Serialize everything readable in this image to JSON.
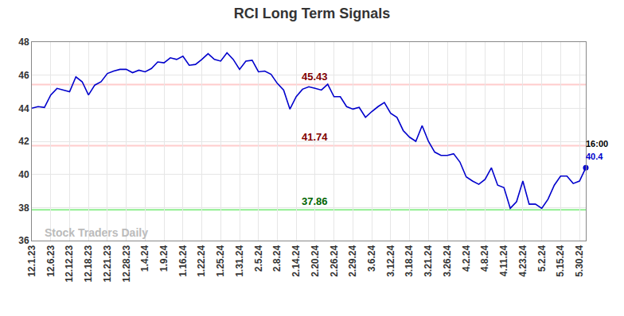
{
  "chart_data": {
    "type": "line",
    "title": "RCI Long Term Signals",
    "watermark": "Stock Traders Daily",
    "color": "#0000cc",
    "marker": "circle",
    "grid": true,
    "categories": [
      "12.1.23",
      null,
      null,
      "12.6.23",
      null,
      null,
      "12.12.23",
      null,
      null,
      "12.18.23",
      null,
      null,
      "12.21.23",
      null,
      null,
      "12.28.23",
      null,
      null,
      "1.4.24",
      null,
      null,
      "1.9.24",
      null,
      null,
      "1.16.24",
      null,
      null,
      "1.22.24",
      null,
      null,
      "1.25.24",
      null,
      null,
      "1.31.24",
      null,
      null,
      "2.5.24",
      null,
      null,
      "2.8.24",
      null,
      null,
      "2.14.24",
      null,
      null,
      "2.20.24",
      null,
      null,
      "2.26.24",
      null,
      null,
      "2.29.24",
      null,
      null,
      "3.6.24",
      null,
      null,
      "3.12.24",
      null,
      null,
      "3.18.24",
      null,
      null,
      "3.21.24",
      null,
      null,
      "3.26.24",
      null,
      null,
      "4.2.24",
      null,
      null,
      "4.8.24",
      null,
      null,
      "4.11.24",
      null,
      null,
      "4.23.24",
      null,
      null,
      "5.2.24",
      null,
      null,
      "5.15.24",
      null,
      null,
      "5.30.24",
      null
    ],
    "values": [
      44.0,
      44.1,
      44.05,
      44.8,
      45.2,
      45.1,
      45.0,
      45.9,
      45.6,
      44.8,
      45.4,
      45.6,
      46.1,
      46.25,
      46.35,
      46.35,
      46.15,
      46.3,
      46.2,
      46.4,
      46.8,
      46.75,
      47.05,
      46.95,
      47.15,
      46.6,
      46.65,
      46.95,
      47.3,
      46.95,
      46.85,
      47.35,
      46.95,
      46.35,
      46.85,
      46.9,
      46.2,
      46.25,
      46.05,
      45.5,
      45.1,
      43.95,
      44.7,
      45.15,
      45.3,
      45.2,
      45.1,
      45.45,
      44.7,
      44.7,
      44.1,
      43.95,
      44.05,
      43.45,
      43.8,
      44.1,
      44.35,
      43.7,
      43.45,
      42.65,
      42.25,
      42.0,
      42.95,
      42.0,
      41.35,
      41.15,
      41.15,
      41.25,
      40.75,
      39.85,
      39.6,
      39.4,
      39.7,
      40.4,
      39.35,
      39.2,
      37.95,
      38.35,
      39.6,
      38.2,
      38.2,
      37.95,
      38.5,
      39.35,
      39.9,
      39.9,
      39.45,
      39.6,
      40.4
    ],
    "last_point_time": "16:00",
    "ylim": [
      36,
      48
    ],
    "yticks": [
      36,
      38,
      40,
      42,
      44,
      46,
      48
    ],
    "xlim": [
      0,
      88
    ],
    "lines": [
      {
        "value": 45.43,
        "color": "#ffcccc",
        "label_color": "#800000"
      },
      {
        "value": 41.74,
        "color": "#ffcccc",
        "label_color": "#800000"
      },
      {
        "value": 37.86,
        "color": "#90ee90",
        "label_color": "#006400"
      }
    ]
  }
}
